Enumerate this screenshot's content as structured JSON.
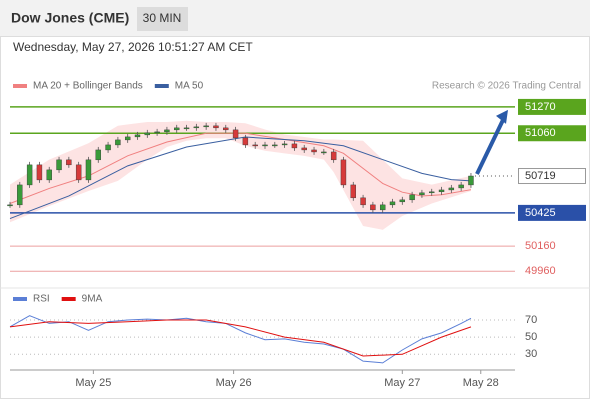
{
  "chart_data": [
    {
      "type": "candlestick",
      "title": "Dow Jones (CME)",
      "timeframe": "30 MIN",
      "subtitle": "Wednesday, May 27, 2026 10:51:27 AM CET",
      "credit": "Research © 2026 Trading Central",
      "xlim": [
        0,
        52
      ],
      "ylim": [
        49850,
        51365
      ],
      "xticks": [
        {
          "value": 8.5,
          "label": "May 25"
        },
        {
          "value": 22.8,
          "label": "May 26"
        },
        {
          "value": 40,
          "label": "May 27"
        },
        {
          "value": 48,
          "label": "May 28"
        }
      ],
      "up_color": "#3a9a3a",
      "down_color": "#d63a3a",
      "x": [
        0,
        1,
        2,
        3,
        4,
        5,
        6,
        7,
        8,
        9,
        10,
        11,
        12,
        13,
        14,
        15,
        16,
        17,
        18,
        19,
        20,
        21,
        22,
        23,
        24,
        25,
        26,
        27,
        28,
        29,
        30,
        31,
        32,
        33,
        34,
        35,
        36,
        37,
        38,
        39,
        40,
        41,
        42,
        43,
        44,
        45,
        46,
        47
      ],
      "values": [
        50489,
        50648,
        50808,
        50688,
        50768,
        50848,
        50808,
        50688,
        50848,
        50927,
        50967,
        51007,
        51031,
        51047,
        51063,
        51071,
        51087,
        51103,
        51103,
        51111,
        51119,
        51103,
        51087,
        51023,
        50967,
        50959,
        50967,
        50967,
        50975,
        50943,
        50927,
        50911,
        50911,
        50848,
        50648,
        50545,
        50489,
        50449,
        50489,
        50513,
        50529,
        50569,
        50585,
        50593,
        50608,
        50624,
        50648,
        50719
      ],
      "series": [
        {
          "name": "MA 20 + Bollinger Bands",
          "color": "#f08080",
          "x": [
            0,
            4,
            8,
            12,
            16,
            20,
            24,
            28,
            32,
            34,
            36,
            38,
            40,
            42,
            44,
            47
          ],
          "values": [
            50500,
            50620,
            50720,
            50880,
            50990,
            51060,
            51060,
            51010,
            50960,
            50900,
            50780,
            50660,
            50590,
            50560,
            50570,
            50610
          ]
        },
        {
          "name": "MA 50",
          "color": "#3a5fa0",
          "x": [
            0,
            6,
            12,
            18,
            24,
            30,
            34,
            38,
            42,
            45,
            47
          ],
          "values": [
            50380,
            50560,
            50800,
            50950,
            51030,
            51000,
            50960,
            50850,
            50740,
            50690,
            50680
          ]
        }
      ],
      "bands": {
        "color": "#fcdcdc",
        "x": [
          0,
          4,
          8,
          11,
          14,
          16,
          18,
          20,
          22,
          24,
          26,
          28,
          30,
          32,
          33,
          36,
          38,
          40,
          43,
          47
        ],
        "upper": [
          50650,
          50850,
          50980,
          51120,
          51150,
          51150,
          51160,
          51150,
          51150,
          51140,
          51090,
          51050,
          51030,
          51010,
          51010,
          51000,
          50850,
          50700,
          50650,
          50720
        ],
        "lower": [
          50350,
          50480,
          50600,
          50680,
          50850,
          50950,
          51000,
          51020,
          51020,
          50960,
          50920,
          50900,
          50880,
          50850,
          50750,
          50320,
          50290,
          50400,
          50500,
          50600
        ]
      },
      "levels": [
        {
          "value": 51270,
          "color": "#5aa51e",
          "style": "box"
        },
        {
          "value": 51060,
          "color": "#5aa51e",
          "style": "box"
        },
        {
          "value": 50425,
          "color": "#2a50a8",
          "style": "box"
        },
        {
          "value": 50160,
          "color": "#e06060",
          "style": "text"
        },
        {
          "value": 49960,
          "color": "#e06060",
          "style": "text"
        }
      ]
    },
    {
      "type": "line",
      "xlim": [
        0,
        52
      ],
      "ylim": [
        14,
        84
      ],
      "yticks": [
        70,
        50,
        30
      ],
      "grid": true,
      "series": [
        {
          "name": "RSI",
          "color": "#5b7fd6",
          "x": [
            0,
            2,
            4,
            6,
            8,
            10,
            12,
            14,
            16,
            18,
            20,
            22,
            24,
            26,
            28,
            30,
            32,
            34,
            36,
            38,
            40,
            42,
            44,
            46,
            47
          ],
          "values": [
            62,
            75,
            66,
            68,
            58,
            68,
            70,
            71,
            70,
            72,
            68,
            66,
            55,
            47,
            48,
            44,
            42,
            36,
            22,
            20,
            35,
            48,
            55,
            66,
            72
          ]
        },
        {
          "name": "9MA",
          "color": "#e01010",
          "x": [
            0,
            4,
            8,
            12,
            16,
            20,
            24,
            28,
            32,
            36,
            40,
            44,
            47
          ],
          "values": [
            62,
            68,
            66,
            68,
            70,
            70,
            62,
            50,
            44,
            28,
            30,
            50,
            62
          ]
        }
      ]
    }
  ]
}
